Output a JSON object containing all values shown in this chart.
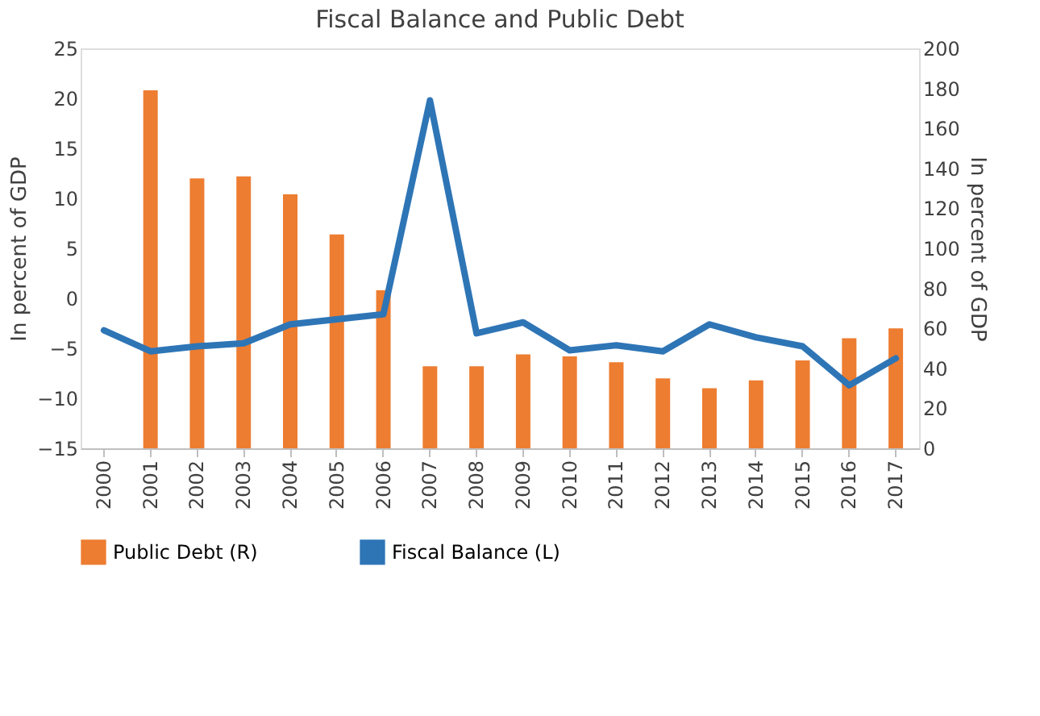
{
  "chart_data": {
    "type": "bar",
    "title": "Fiscal Balance and Public Debt",
    "ylabel": "In percent of GDP",
    "y2label": "In percent of GDP",
    "categories": [
      "2000",
      "2001",
      "2002",
      "2003",
      "2004",
      "2005",
      "2006",
      "2007",
      "2008",
      "2009",
      "2010",
      "2011",
      "2012",
      "2013",
      "2014",
      "2015",
      "2016",
      "2017"
    ],
    "series": [
      {
        "name": "Public Debt (R)",
        "axis": "y2",
        "color": "#ed7d31",
        "values": [
          null,
          179,
          135,
          136,
          127,
          107,
          79,
          41,
          41,
          47,
          46,
          43,
          35,
          30,
          34,
          44,
          55,
          60
        ]
      },
      {
        "name": "Fiscal Balance (L)",
        "type": "line",
        "axis": "y",
        "color": "#2e75b6",
        "values": [
          -3.2,
          -5.3,
          -4.8,
          -4.5,
          -2.6,
          -2.1,
          -1.6,
          19.8,
          -3.5,
          -2.4,
          -5.2,
          -4.7,
          -5.3,
          -2.6,
          -3.9,
          -4.8,
          -8.7,
          -6.0
        ]
      }
    ],
    "ylim": [
      -15,
      25
    ],
    "yticks": [
      -15,
      -10,
      -5,
      0,
      5,
      10,
      15,
      20,
      25
    ],
    "y2lim": [
      0,
      200
    ],
    "y2ticks": [
      0,
      20,
      40,
      60,
      80,
      100,
      120,
      140,
      160,
      180,
      200
    ],
    "grid": false,
    "legend": "bottom",
    "marker": "none"
  }
}
